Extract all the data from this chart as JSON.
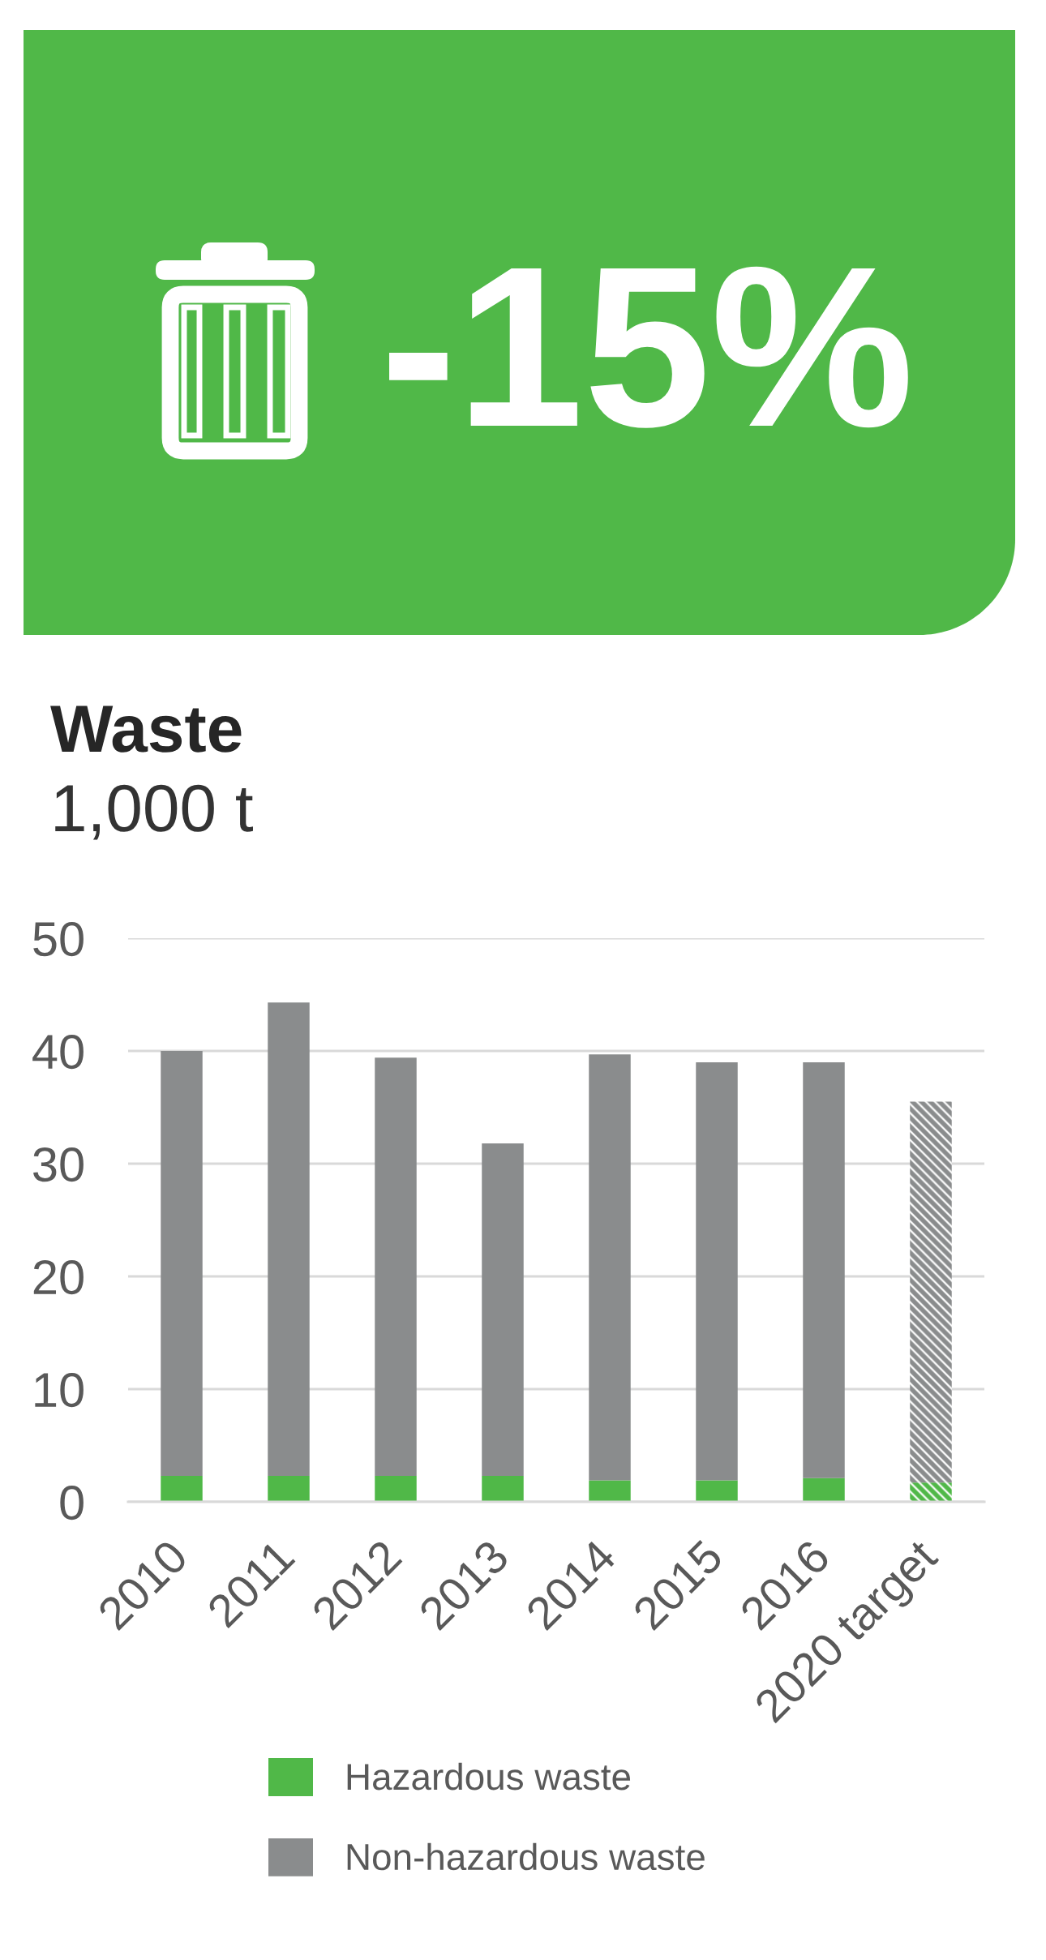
{
  "chart_data": [
    {
      "type": "other",
      "color": "#50b848",
      "annotations": [
        "-15%"
      ]
    },
    {
      "type": "bar",
      "title": "Waste",
      "subtitle": "1,000 t",
      "categories": [
        "2010",
        "2011",
        "2012",
        "2013",
        "2014",
        "2015",
        "2016",
        "2020 target"
      ],
      "stacked": true,
      "series": [
        {
          "name": "Hazardous waste",
          "color": "#50b848",
          "values": [
            2.3,
            2.3,
            2.3,
            2.3,
            1.9,
            1.9,
            2.1,
            1.7
          ]
        },
        {
          "name": "Non-hazardous waste",
          "color": "#8a8c8d",
          "values": [
            37.7,
            42.0,
            37.1,
            29.5,
            37.8,
            37.1,
            36.9,
            33.8
          ]
        }
      ],
      "ylim": [
        0,
        50
      ],
      "yticks": [
        0,
        10,
        20,
        30,
        40,
        50
      ],
      "grid": "y",
      "legend": "bottom"
    }
  ]
}
